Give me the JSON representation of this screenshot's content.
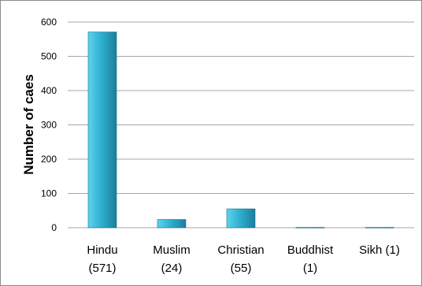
{
  "chart_data": {
    "type": "bar",
    "categories": [
      "Hindu\n(571)",
      "Muslim\n(24)",
      "Christian\n(55)",
      "Buddhist\n(1)",
      "Sikh (1)"
    ],
    "values": [
      571,
      24,
      55,
      1,
      1
    ],
    "title": "",
    "xlabel": "",
    "ylabel": "Number of caes",
    "ylim": [
      0,
      600
    ],
    "yticks": [
      0,
      100,
      200,
      300,
      400,
      500,
      600
    ],
    "grid": true,
    "legend": "none",
    "colors": {
      "bar_top": "#5ed4ee",
      "bar_mid": "#2fb0d0",
      "bar_bottom": "#1a7f9c",
      "bar_edge": "#1b6f86",
      "grid": "#a6a6a6"
    }
  }
}
